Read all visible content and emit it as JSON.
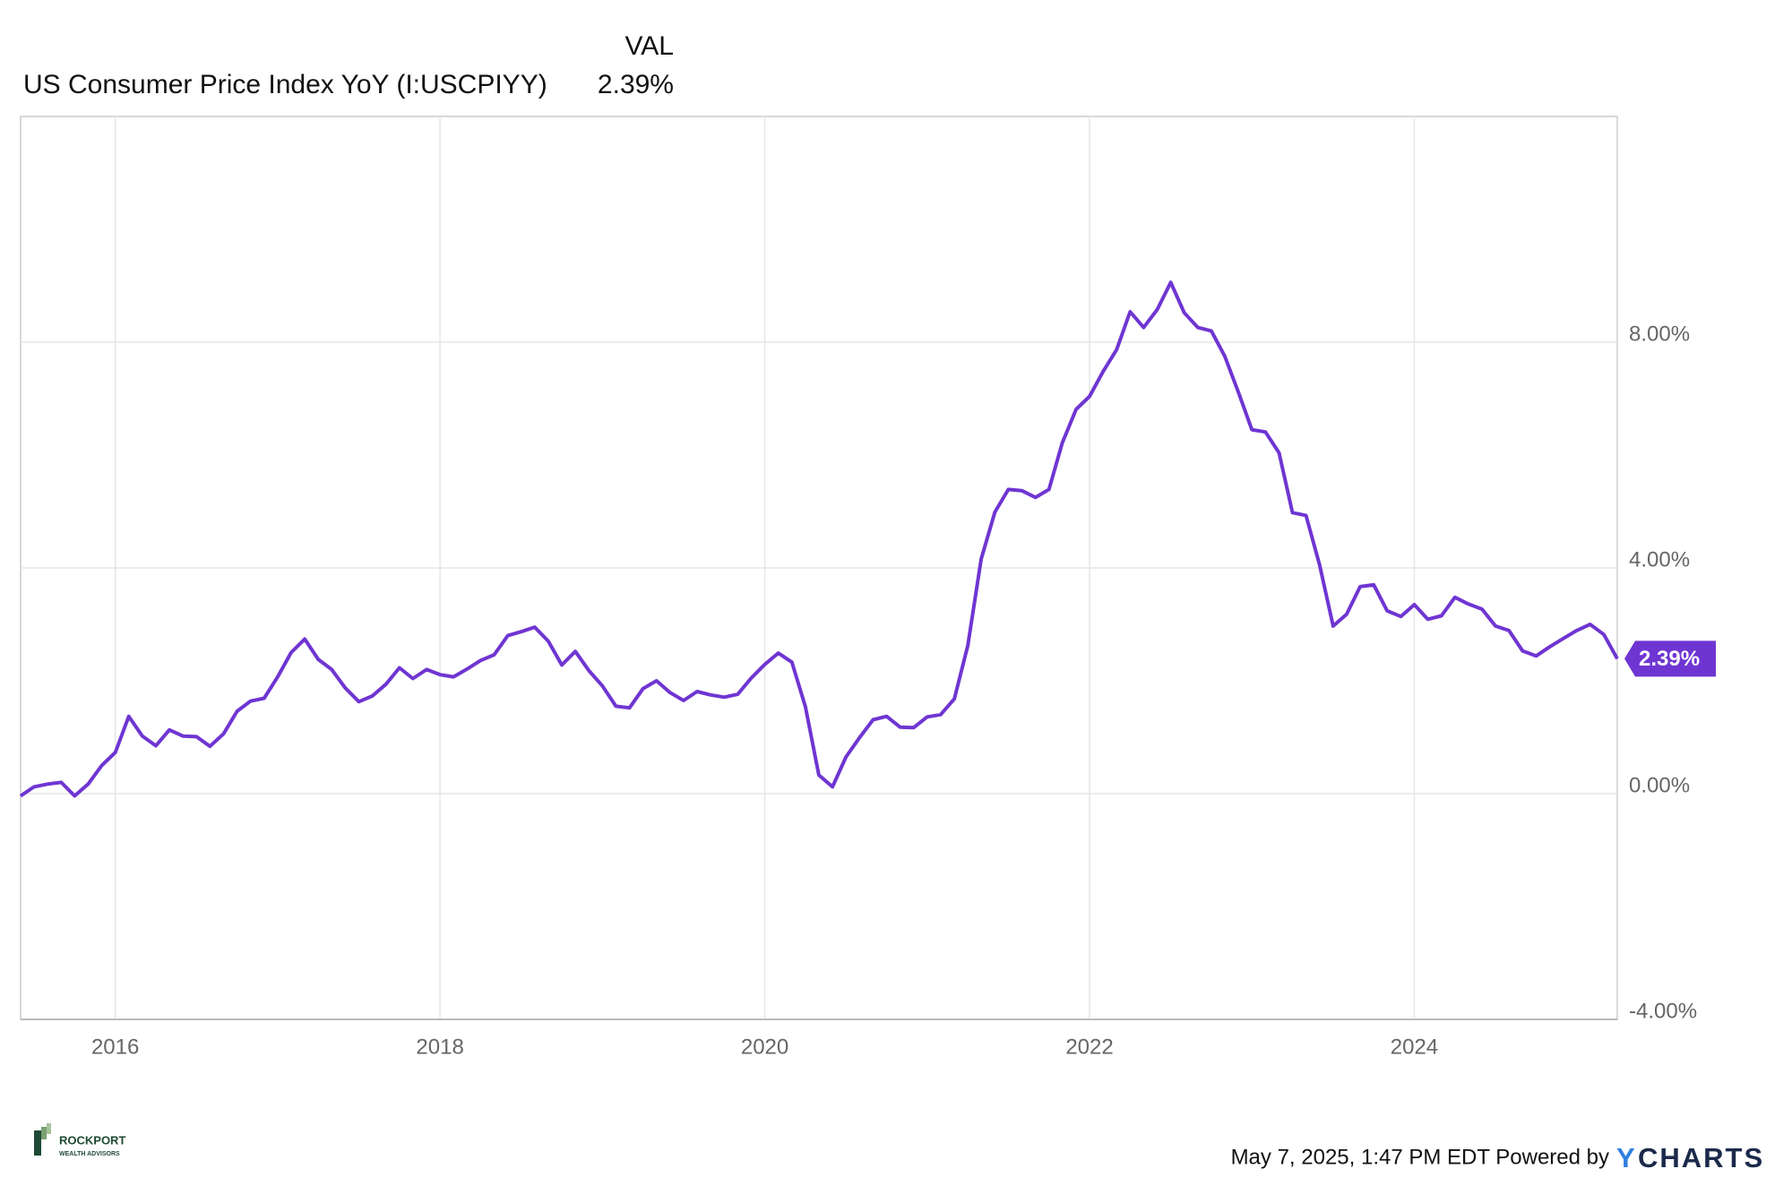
{
  "chart_data": {
    "type": "line",
    "header": "VAL",
    "series": [
      {
        "name": "US Consumer Price Index YoY (I:USCPIYY)",
        "color": "#6f35d2",
        "values": [
          -0.04,
          0.12,
          0.17,
          0.2,
          -0.04,
          0.17,
          0.5,
          0.73,
          1.37,
          1.02,
          0.85,
          1.13,
          1.02,
          1.01,
          0.84,
          1.06,
          1.46,
          1.64,
          1.69,
          2.07,
          2.5,
          2.74,
          2.38,
          2.2,
          1.87,
          1.63,
          1.73,
          1.94,
          2.23,
          2.04,
          2.2,
          2.11,
          2.07,
          2.21,
          2.36,
          2.46,
          2.8,
          2.87,
          2.95,
          2.7,
          2.28,
          2.52,
          2.18,
          1.91,
          1.55,
          1.52,
          1.86,
          2.0,
          1.79,
          1.65,
          1.81,
          1.75,
          1.71,
          1.76,
          2.05,
          2.29,
          2.49,
          2.33,
          1.54,
          0.33,
          0.12,
          0.65,
          0.99,
          1.31,
          1.37,
          1.18,
          1.17,
          1.36,
          1.4,
          1.68,
          2.62,
          4.16,
          4.99,
          5.39,
          5.37,
          5.25,
          5.39,
          6.22,
          6.81,
          7.04,
          7.48,
          7.87,
          8.54,
          8.26,
          8.58,
          9.06,
          8.52,
          8.26,
          8.2,
          7.75,
          7.11,
          6.45,
          6.41,
          6.04,
          4.98,
          4.93,
          4.05,
          2.97,
          3.18,
          3.67,
          3.7,
          3.24,
          3.14,
          3.35,
          3.09,
          3.15,
          3.48,
          3.36,
          3.27,
          2.97,
          2.89,
          2.53,
          2.44,
          2.6,
          2.75,
          2.89,
          3.0,
          2.82,
          2.39
        ]
      }
    ],
    "x": [
      2015.417,
      2015.5,
      2015.583,
      2015.667,
      2015.75,
      2015.833,
      2015.917,
      2016,
      2016.083,
      2016.167,
      2016.25,
      2016.333,
      2016.417,
      2016.5,
      2016.583,
      2016.667,
      2016.75,
      2016.833,
      2016.917,
      2017,
      2017.083,
      2017.167,
      2017.25,
      2017.333,
      2017.417,
      2017.5,
      2017.583,
      2017.667,
      2017.75,
      2017.833,
      2017.917,
      2018,
      2018.083,
      2018.167,
      2018.25,
      2018.333,
      2018.417,
      2018.5,
      2018.583,
      2018.667,
      2018.75,
      2018.833,
      2018.917,
      2019,
      2019.083,
      2019.167,
      2019.25,
      2019.333,
      2019.417,
      2019.5,
      2019.583,
      2019.667,
      2019.75,
      2019.833,
      2019.917,
      2020,
      2020.083,
      2020.167,
      2020.25,
      2020.333,
      2020.417,
      2020.5,
      2020.583,
      2020.667,
      2020.75,
      2020.833,
      2020.917,
      2021,
      2021.083,
      2021.167,
      2021.25,
      2021.333,
      2021.417,
      2021.5,
      2021.583,
      2021.667,
      2021.75,
      2021.833,
      2021.917,
      2022,
      2022.083,
      2022.167,
      2022.25,
      2022.333,
      2022.417,
      2022.5,
      2022.583,
      2022.667,
      2022.75,
      2022.833,
      2022.917,
      2023,
      2023.083,
      2023.167,
      2023.25,
      2023.333,
      2023.417,
      2023.5,
      2023.583,
      2023.667,
      2023.75,
      2023.833,
      2023.917,
      2024,
      2024.083,
      2024.167,
      2024.25,
      2024.333,
      2024.417,
      2024.5,
      2024.583,
      2024.667,
      2024.75,
      2024.833,
      2024.917,
      2025,
      2025.083,
      2025.167,
      2025.25
    ],
    "last_value": {
      "value": 2.39,
      "label": "2.39%"
    },
    "xlim": [
      2015.417,
      2025.25
    ],
    "xticks": [
      2016,
      2018,
      2020,
      2022,
      2024
    ],
    "ylim": [
      -4,
      12
    ],
    "yticks": [
      {
        "value": -4,
        "label": "-4.00%"
      },
      {
        "value": 0,
        "label": "0.00%"
      },
      {
        "value": 4,
        "label": "4.00%"
      },
      {
        "value": 8,
        "label": "8.00%"
      }
    ],
    "grid": true,
    "footer": "May 7, 2025, 1:47 PM EDT Powered by",
    "brand": {
      "y": "Y",
      "rest": "CHARTS"
    },
    "logo": {
      "name": "ROCKPORT",
      "sub": "WEALTH ADVISORS"
    }
  }
}
